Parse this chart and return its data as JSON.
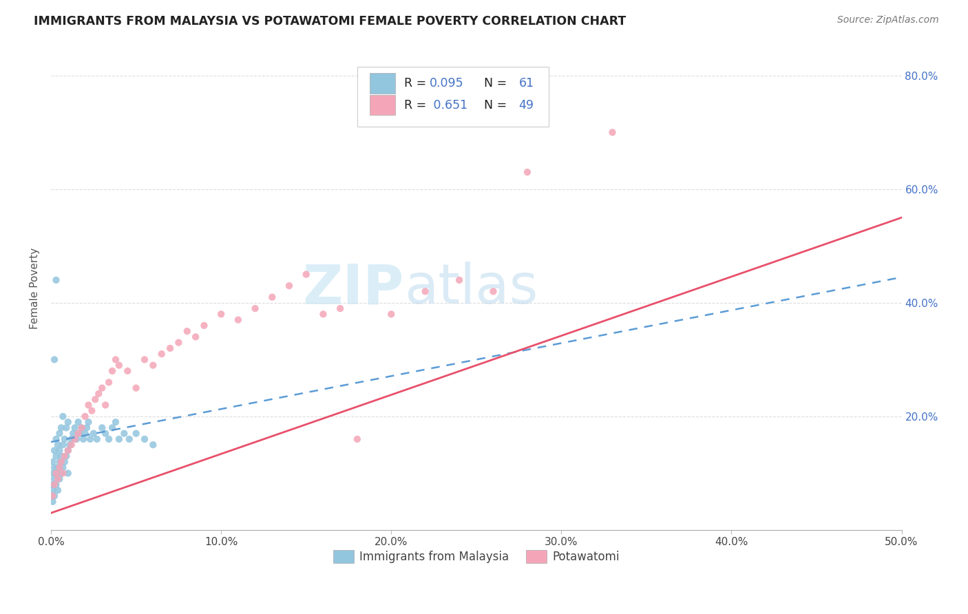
{
  "title": "IMMIGRANTS FROM MALAYSIA VS POTAWATOMI FEMALE POVERTY CORRELATION CHART",
  "source": "Source: ZipAtlas.com",
  "ylabel": "Female Poverty",
  "xlim": [
    0.0,
    0.5
  ],
  "ylim": [
    0.0,
    0.85
  ],
  "xtick_vals": [
    0.0,
    0.1,
    0.2,
    0.3,
    0.4,
    0.5
  ],
  "ytick_vals": [
    0.2,
    0.4,
    0.6,
    0.8
  ],
  "blue_color": "#92c5de",
  "pink_color": "#f4a6b8",
  "blue_line_color": "#5b9bd5",
  "pink_line_color": "#e8506a",
  "legend_text_color": "#4472c6",
  "watermark_color": "#cde8f5",
  "blue_R": 0.095,
  "blue_N": 61,
  "pink_R": 0.651,
  "pink_N": 49,
  "blue_x": [
    0.001,
    0.001,
    0.001,
    0.001,
    0.001,
    0.002,
    0.002,
    0.002,
    0.002,
    0.003,
    0.003,
    0.003,
    0.003,
    0.004,
    0.004,
    0.004,
    0.005,
    0.005,
    0.005,
    0.005,
    0.006,
    0.006,
    0.006,
    0.007,
    0.007,
    0.007,
    0.008,
    0.008,
    0.009,
    0.009,
    0.01,
    0.01,
    0.01,
    0.011,
    0.012,
    0.013,
    0.014,
    0.015,
    0.016,
    0.017,
    0.018,
    0.019,
    0.02,
    0.021,
    0.022,
    0.023,
    0.025,
    0.027,
    0.03,
    0.032,
    0.034,
    0.036,
    0.038,
    0.04,
    0.043,
    0.046,
    0.05,
    0.055,
    0.06,
    0.003,
    0.002
  ],
  "blue_y": [
    0.05,
    0.07,
    0.08,
    0.1,
    0.12,
    0.06,
    0.09,
    0.11,
    0.14,
    0.08,
    0.1,
    0.13,
    0.16,
    0.07,
    0.11,
    0.15,
    0.09,
    0.12,
    0.14,
    0.17,
    0.1,
    0.13,
    0.18,
    0.11,
    0.15,
    0.2,
    0.12,
    0.16,
    0.13,
    0.18,
    0.1,
    0.14,
    0.19,
    0.15,
    0.16,
    0.17,
    0.18,
    0.16,
    0.19,
    0.17,
    0.18,
    0.16,
    0.17,
    0.18,
    0.19,
    0.16,
    0.17,
    0.16,
    0.18,
    0.17,
    0.16,
    0.18,
    0.19,
    0.16,
    0.17,
    0.16,
    0.17,
    0.16,
    0.15,
    0.44,
    0.3
  ],
  "pink_x": [
    0.001,
    0.002,
    0.003,
    0.004,
    0.005,
    0.006,
    0.007,
    0.008,
    0.01,
    0.012,
    0.014,
    0.016,
    0.018,
    0.02,
    0.022,
    0.024,
    0.026,
    0.028,
    0.03,
    0.032,
    0.034,
    0.036,
    0.038,
    0.04,
    0.045,
    0.05,
    0.055,
    0.06,
    0.065,
    0.07,
    0.075,
    0.08,
    0.085,
    0.09,
    0.1,
    0.11,
    0.12,
    0.13,
    0.14,
    0.15,
    0.16,
    0.17,
    0.18,
    0.2,
    0.22,
    0.24,
    0.26,
    0.28,
    0.33
  ],
  "pink_y": [
    0.06,
    0.08,
    0.1,
    0.09,
    0.11,
    0.12,
    0.1,
    0.13,
    0.14,
    0.15,
    0.16,
    0.17,
    0.18,
    0.2,
    0.22,
    0.21,
    0.23,
    0.24,
    0.25,
    0.22,
    0.26,
    0.28,
    0.3,
    0.29,
    0.28,
    0.25,
    0.3,
    0.29,
    0.31,
    0.32,
    0.33,
    0.35,
    0.34,
    0.36,
    0.38,
    0.37,
    0.39,
    0.41,
    0.43,
    0.45,
    0.38,
    0.39,
    0.16,
    0.38,
    0.42,
    0.44,
    0.42,
    0.63,
    0.7
  ]
}
